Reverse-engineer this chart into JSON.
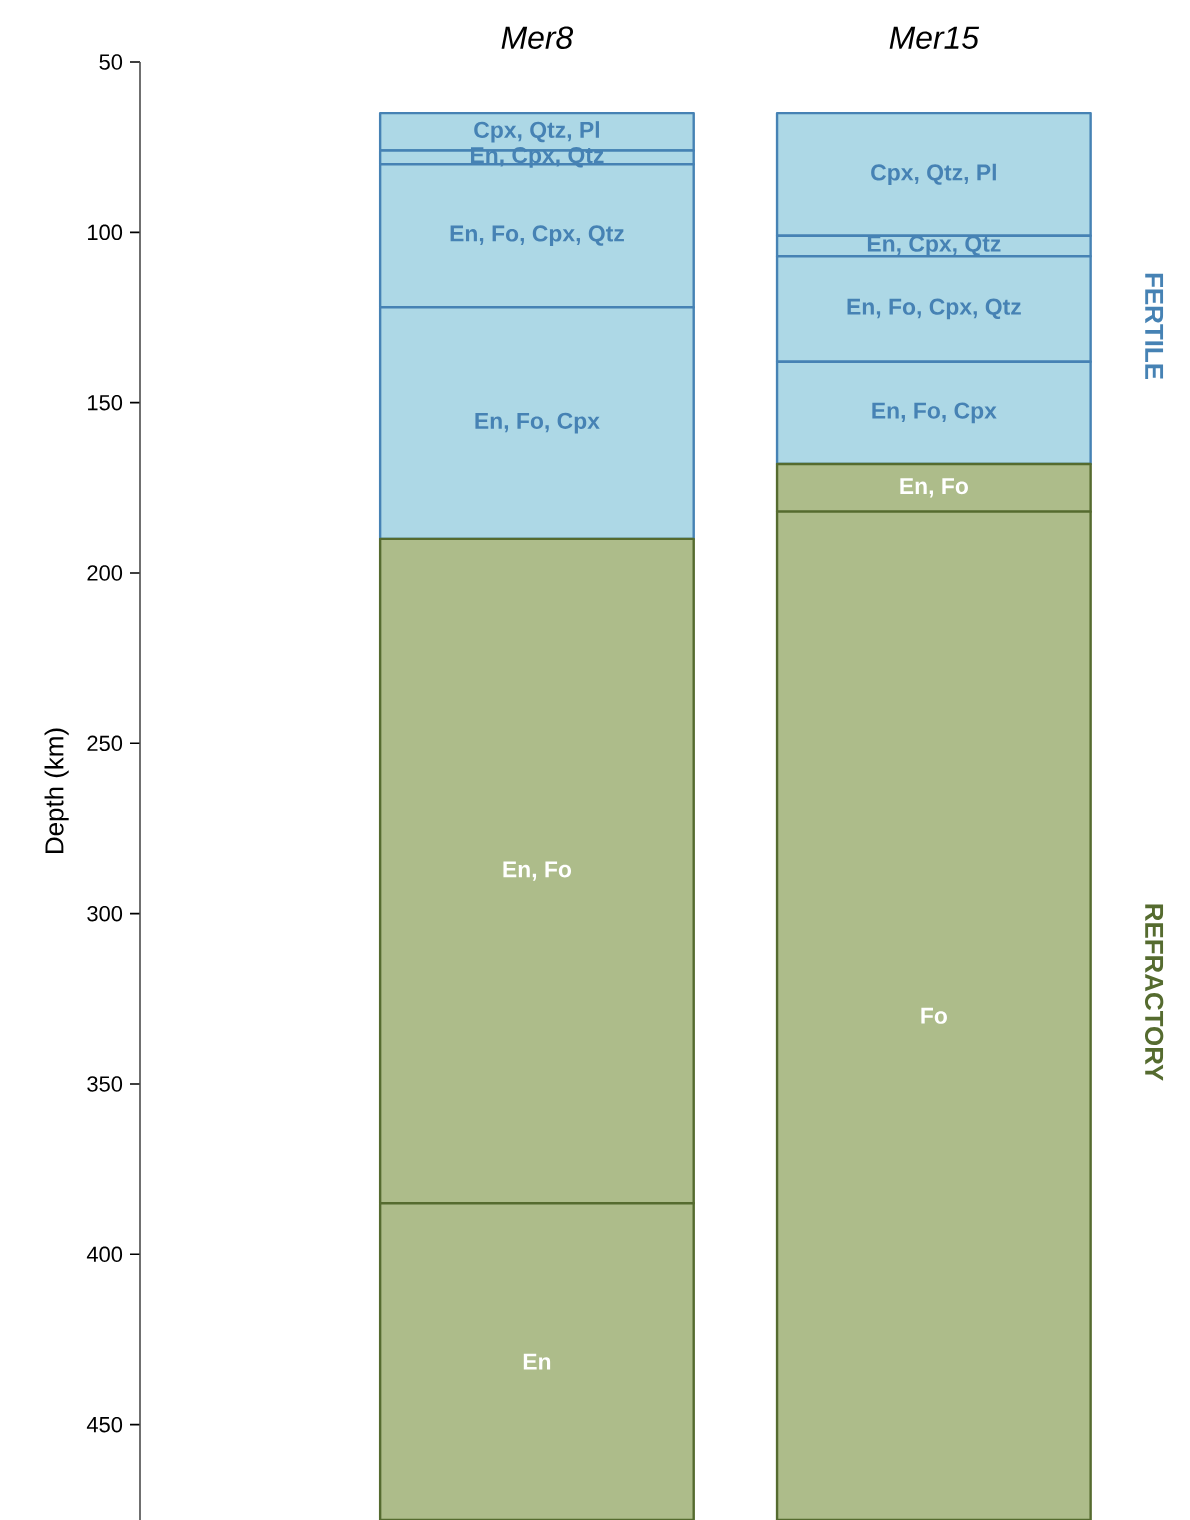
{
  "chart_data": {
    "type": "bar",
    "ylabel": "Depth (km)",
    "categories": [
      "Mer8",
      "Mer15"
    ],
    "ylim": [
      478,
      50
    ],
    "yticks": [
      50,
      100,
      150,
      200,
      250,
      300,
      350,
      400,
      450
    ],
    "series": [
      {
        "color": "#add8e6",
        "base": [
          65,
          65
        ],
        "values": [
          11,
          36
        ],
        "value_labels": [
          "Cpx, Qtz, Pl",
          "Cpx, Qtz, Pl"
        ]
      },
      {
        "color": "#add8e6",
        "base": [
          76,
          101
        ],
        "values": [
          4,
          6
        ],
        "value_labels": [
          "En, Cpx, Qtz",
          "En, Cpx, Qtz"
        ]
      },
      {
        "color": "#add8e6",
        "base": [
          80,
          107
        ],
        "values": [
          42,
          31
        ],
        "value_labels": [
          "En, Fo, Cpx, Qtz",
          "En, Fo, Cpx, Qtz"
        ]
      },
      {
        "color": "#add8e6",
        "base": [
          122,
          138
        ],
        "values": [
          68,
          30
        ],
        "value_labels": [
          "En, Fo, Cpx",
          "En, Fo, Cpx"
        ]
      },
      {
        "color": "#adbc8a",
        "base": [
          190,
          168
        ],
        "values": [
          195,
          14
        ],
        "value_labels": [
          "En, Fo",
          "En, Fo"
        ]
      },
      {
        "color": "#adbc8a",
        "base": [
          385,
          null
        ],
        "values": [
          93,
          null
        ],
        "value_labels": [
          "En",
          null
        ]
      },
      {
        "color": "#adbc8a",
        "base": [
          null,
          182
        ],
        "values": [
          null,
          296
        ],
        "value_labels": [
          null,
          "Fo"
        ]
      }
    ],
    "annotations": [
      "FERTILE",
      "REFRACTORY"
    ]
  }
}
